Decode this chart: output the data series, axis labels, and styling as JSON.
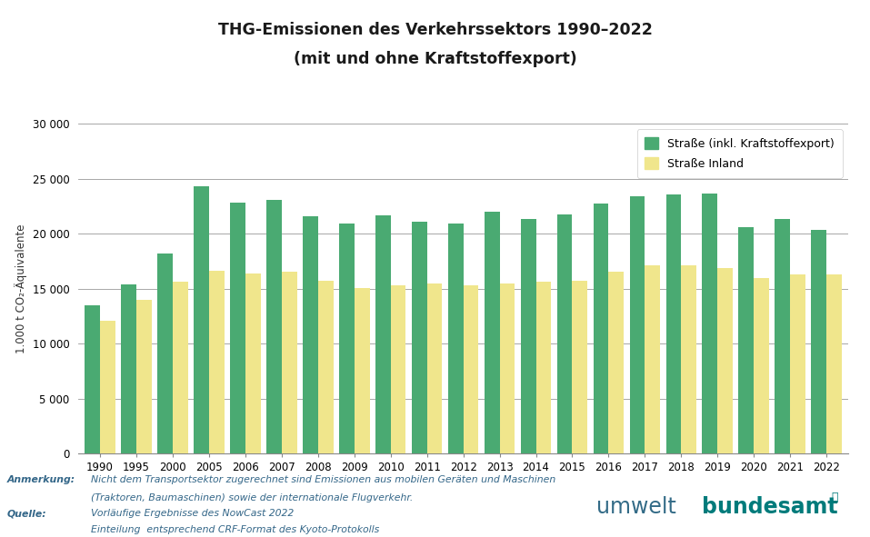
{
  "title_line1": "THG-Emissionen des Verkehrssektors 1990–2022",
  "title_line2": "(mit und ohne Kraftstoffexport)",
  "ylabel": "1.000 t CO₂-Äquivalente",
  "years": [
    1990,
    1995,
    2000,
    2005,
    2006,
    2007,
    2008,
    2009,
    2010,
    2011,
    2012,
    2013,
    2014,
    2015,
    2016,
    2017,
    2018,
    2019,
    2020,
    2021,
    2022
  ],
  "green_values": [
    13500,
    15350,
    18200,
    24300,
    22800,
    23050,
    21550,
    20900,
    21650,
    21050,
    20900,
    21950,
    21350,
    21700,
    22700,
    23350,
    23550,
    23650,
    20550,
    21350,
    20350
  ],
  "yellow_values": [
    12100,
    13950,
    15600,
    16600,
    16400,
    16500,
    15750,
    15050,
    15300,
    15500,
    15300,
    15500,
    15600,
    15700,
    16550,
    17100,
    17100,
    16900,
    15950,
    16300,
    16300
  ],
  "green_color": "#4aaa72",
  "yellow_color": "#f0e68c",
  "legend_green": "Straße (inkl. Kraftstoffexport)",
  "legend_yellow": "Straße Inland",
  "yticks": [
    0,
    5000,
    10000,
    15000,
    20000,
    25000,
    30000
  ],
  "ytick_labels": [
    "0",
    "5 000",
    "10 000",
    "15 000",
    "20 000",
    "25 000",
    "30 000"
  ],
  "note_label": "Anmerkung:",
  "note_text1": "Nicht dem Transportsektor zugerechnet sind Emissionen aus mobilen Geräten und Maschinen",
  "note_text2": "(Traktoren, Baumaschinen) sowie der internationale Flugverkehr.",
  "source_label": "Quelle:",
  "source_text1": "Vorläufige Ergebnisse des NowCast 2022",
  "source_text2": "Einteilung  entsprechend CRF-Format des Kyoto-Protokolls",
  "background_color": "#ffffff",
  "bar_width": 0.42,
  "grid_color": "#999999",
  "text_color": "#336688",
  "title_color": "#1a1a1a"
}
